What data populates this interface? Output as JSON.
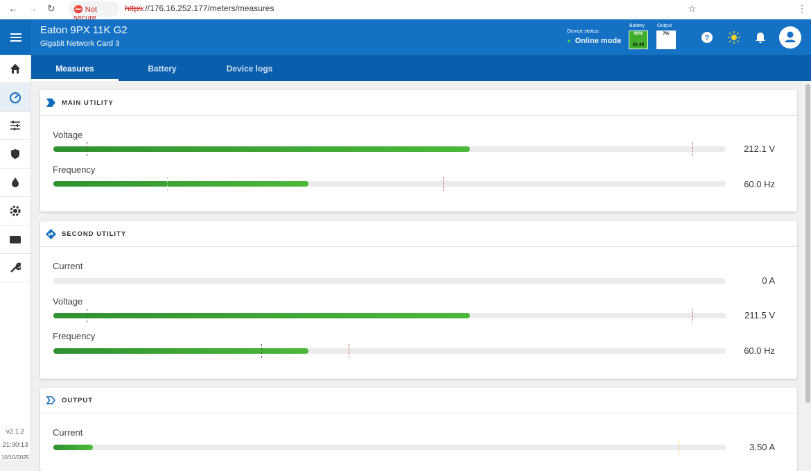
{
  "browser": {
    "security": "Not secure",
    "url_scheme": "https",
    "url_rest": "://176.16.252.177/meters/measures"
  },
  "header": {
    "title": "Eaton 9PX 11K G2",
    "subtitle": "Gigabit Network Card 3",
    "status_label": "Device status:",
    "status": "Online mode",
    "battery_label": "Battery",
    "battery_percent": "90%",
    "battery_time": "01:40",
    "output_label": "Output",
    "output_percent": "7%"
  },
  "tabs": [
    "Measures",
    "Battery",
    "Device logs"
  ],
  "sections": [
    {
      "title": "MAIN UTILITY",
      "rows": [
        {
          "label": "Voltage",
          "value": "212.1 V"
        },
        {
          "label": "Frequency",
          "value": "60.0 Hz"
        }
      ]
    },
    {
      "title": "SECOND UTILITY",
      "rows": [
        {
          "label": "Current",
          "value": "0 A"
        },
        {
          "label": "Voltage",
          "value": "211.5 V"
        },
        {
          "label": "Frequency",
          "value": "60.0 Hz"
        }
      ]
    },
    {
      "title": "OUTPUT",
      "rows": [
        {
          "label": "Current",
          "value": "3.50 A"
        }
      ]
    }
  ],
  "footer": {
    "version": "v2.1.2",
    "time": "21:30:13",
    "date": "10/10/2025"
  }
}
